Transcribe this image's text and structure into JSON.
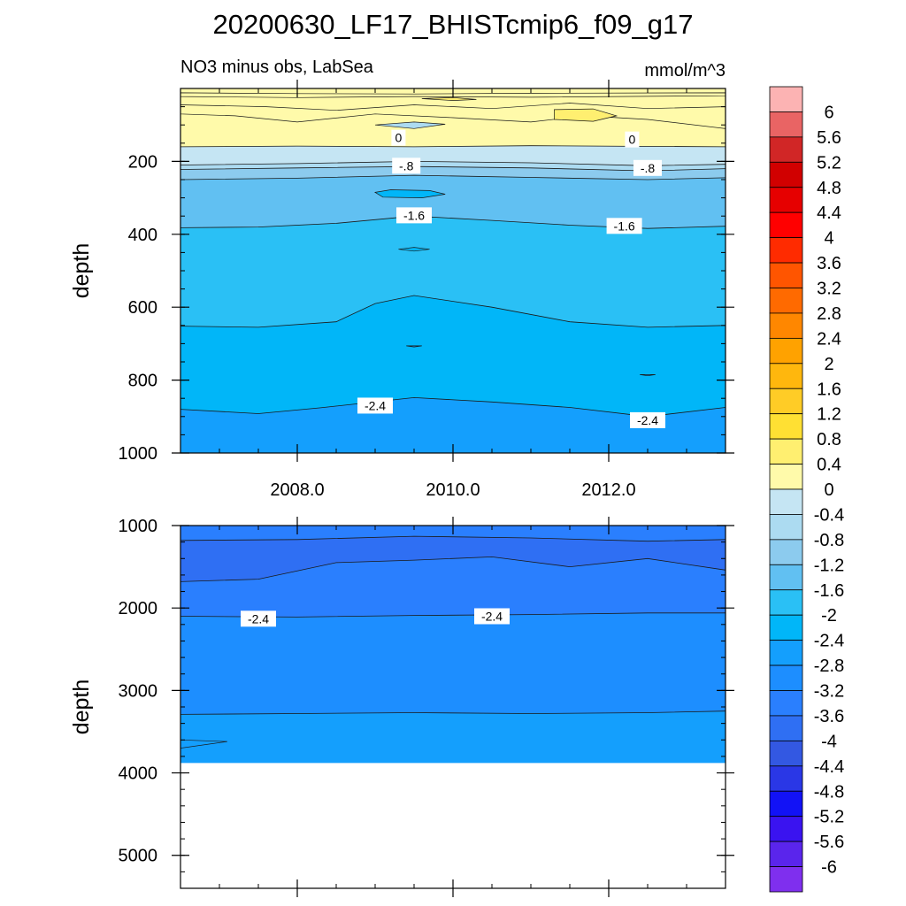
{
  "title": "20200630_LF17_BHISTcmip6_f09_g17",
  "chart_data": {
    "type": "contour",
    "subtitle_left": "NO3 minus obs, LabSea",
    "subtitle_right": "mmol/m^3",
    "time_axis": {
      "range": [
        2006.5,
        2013.5
      ],
      "major_ticks": [
        2008.0,
        2010.0,
        2012.0
      ],
      "tick_labels": [
        "2008.0",
        "2010.0",
        "2012.0"
      ],
      "minor_step": 0.5
    },
    "colorbar": {
      "levels": [
        6,
        5.6,
        5.2,
        4.8,
        4.4,
        4,
        3.6,
        3.2,
        2.8,
        2.4,
        2,
        1.6,
        1.2,
        0.8,
        0.4,
        0,
        -0.4,
        -0.8,
        -1.2,
        -1.6,
        -2,
        -2.4,
        -2.8,
        -3.2,
        -3.6,
        -4,
        -4.4,
        -4.8,
        -5.2,
        -5.6,
        -6
      ],
      "labels": [
        "6",
        "5.6",
        "5.2",
        "4.8",
        "4.4",
        "4",
        "3.6",
        "3.2",
        "2.8",
        "2.4",
        "2",
        "1.6",
        "1.2",
        "0.8",
        "0.4",
        "0",
        "-0.4",
        "-0.8",
        "-1.2",
        "-1.6",
        "-2",
        "-2.4",
        "-2.8",
        "-3.2",
        "-3.6",
        "-4",
        "-4.4",
        "-4.8",
        "-5.2",
        "-5.6",
        "-6"
      ],
      "colors": [
        "#fcb3b3",
        "#e96464",
        "#d12626",
        "#d10000",
        "#e60000",
        "#ff0000",
        "#ff2b00",
        "#ff5500",
        "#ff6a00",
        "#ff8700",
        "#ffa200",
        "#ffb70d",
        "#ffcc26",
        "#ffe033",
        "#ffef70",
        "#fffaaa",
        "#c5e5f3",
        "#acdbf1",
        "#8ccbee",
        "#61c0f2",
        "#2ac0f5",
        "#01b6f8",
        "#149ffd",
        "#1d8eff",
        "#2a7ffe",
        "#2f6ff3",
        "#3358e2",
        "#2a37e6",
        "#1212f6",
        "#3a13f0",
        "#5a25ec",
        "#7f2fee"
      ]
    },
    "panels": [
      {
        "name": "upper",
        "ylabel": "depth",
        "ylim": [
          1000,
          0
        ],
        "y_major_ticks": [
          200,
          400,
          600,
          800,
          1000
        ],
        "y_tick_labels": [
          "200",
          "400",
          "600",
          "800",
          "1000"
        ],
        "y_minor_step": 50,
        "show_x_labels": true,
        "contour_labels": [
          {
            "text": "0",
            "t": 2009.3,
            "d": 135
          },
          {
            "text": "0",
            "t": 2012.3,
            "d": 140
          },
          {
            "text": "-.8",
            "t": 2009.4,
            "d": 212
          },
          {
            "text": "-.8",
            "t": 2012.5,
            "d": 218
          },
          {
            "text": "-1.6",
            "t": 2009.5,
            "d": 348
          },
          {
            "text": "-1.6",
            "t": 2012.2,
            "d": 377
          },
          {
            "text": "-2.4",
            "t": 2009.0,
            "d": 870
          },
          {
            "text": "-2.4",
            "t": 2012.5,
            "d": 910
          }
        ]
      },
      {
        "name": "lower",
        "ylabel": "depth",
        "ylim": [
          5400,
          1000
        ],
        "y_major_ticks": [
          1000,
          2000,
          3000,
          4000,
          5000
        ],
        "y_tick_labels": [
          "1000",
          "2000",
          "3000",
          "4000",
          "5000"
        ],
        "y_minor_step": 200,
        "show_x_labels": false,
        "data_bottom_depth": 3880,
        "contour_labels": [
          {
            "text": "-2.4",
            "t": 2007.5,
            "d": 2130
          },
          {
            "text": "-2.4",
            "t": 2010.5,
            "d": 2100
          }
        ]
      }
    ]
  }
}
